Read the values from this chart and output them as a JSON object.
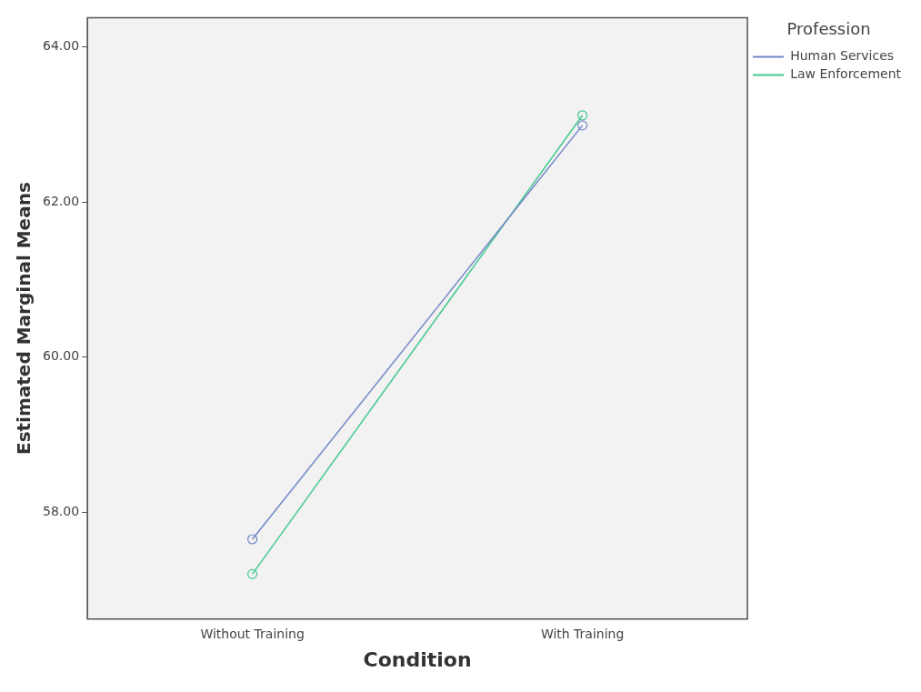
{
  "chart_data": {
    "type": "line",
    "xlabel": "Condition",
    "ylabel": "Estimated Marginal Means",
    "legend_title": "Profession",
    "categories": [
      "Without Training",
      "With Training"
    ],
    "series": [
      {
        "name": "Human Services",
        "color": "#7086c8",
        "values": [
          57.65,
          62.99
        ]
      },
      {
        "name": "Law Enforcement",
        "color": "#45c98e",
        "values": [
          57.2,
          63.12
        ]
      }
    ],
    "ylim": [
      56.62,
      64.38
    ],
    "yticks": [
      {
        "value": 58,
        "label": "58.00"
      },
      {
        "value": 60,
        "label": "60.00"
      },
      {
        "value": 62,
        "label": "62.00"
      },
      {
        "value": 64,
        "label": "64.00"
      }
    ],
    "grid": false,
    "legend": "top right",
    "marker": "circle",
    "line_style": "solid"
  }
}
